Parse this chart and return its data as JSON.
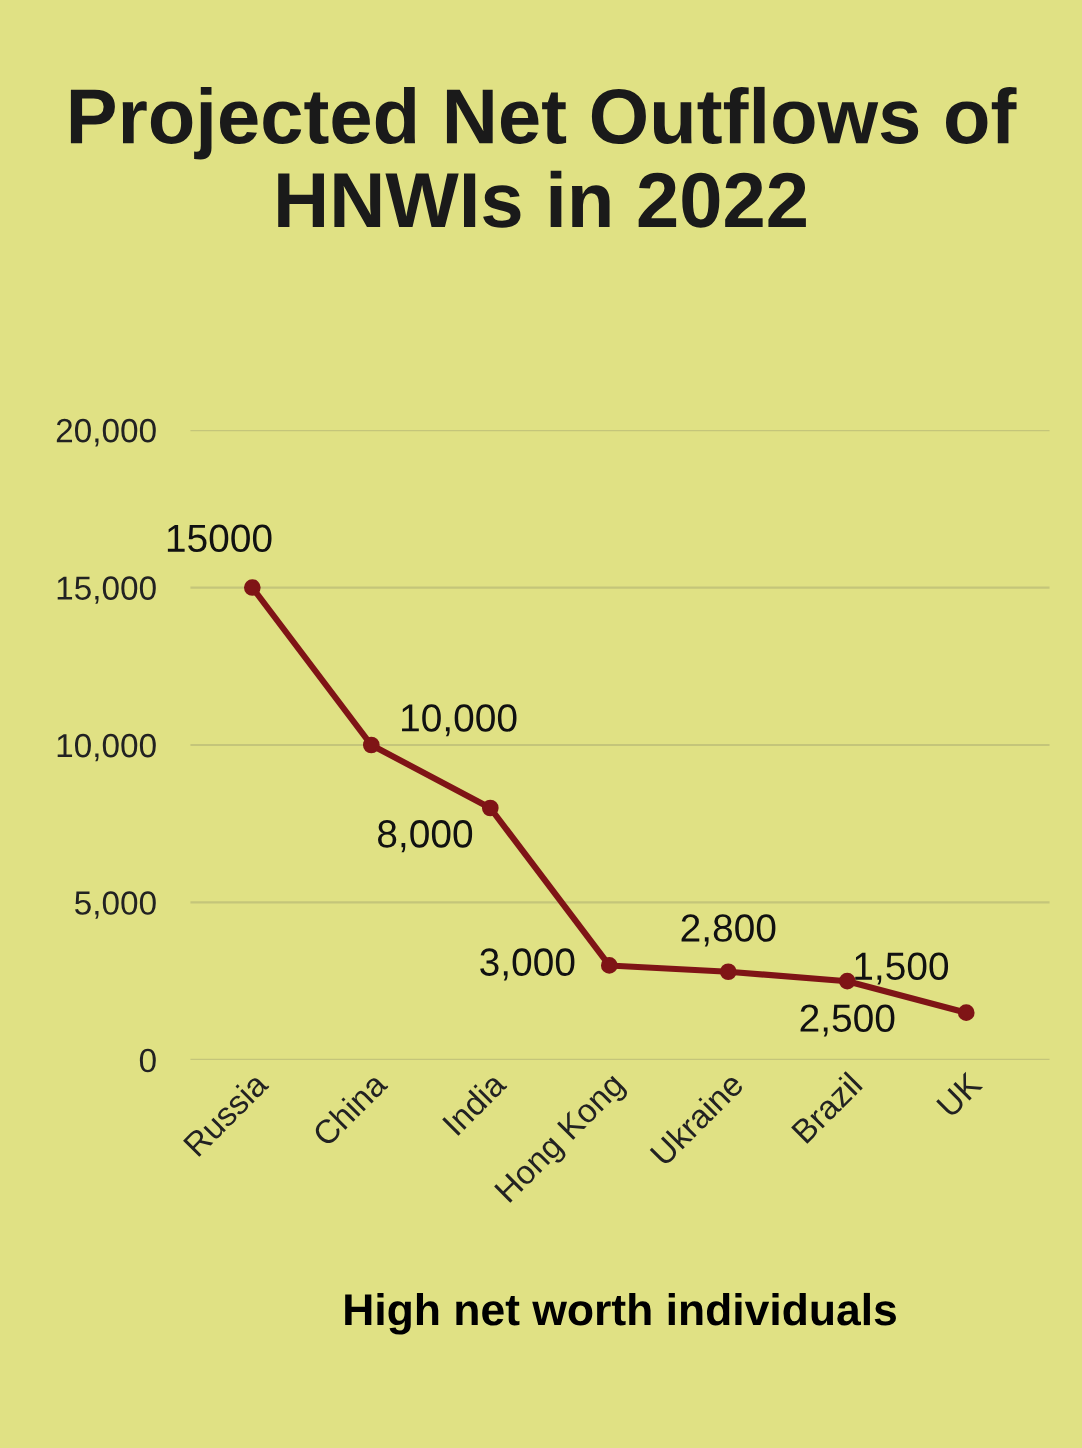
{
  "chart_data": {
    "type": "line",
    "title": "Projected Net Outflows of\nHNWIs in 2022",
    "xlabel": "High net worth individuals",
    "categories": [
      "Russia",
      "China",
      "India",
      "Hong Kong",
      "Ukraine",
      "Brazil",
      "UK"
    ],
    "values": [
      15000,
      10000,
      8000,
      3000,
      2800,
      2500,
      1500
    ],
    "value_labels": [
      "15000",
      "10,000",
      "8,000",
      "3,000",
      "2,800",
      "2,500",
      "1,500"
    ],
    "color": "#7f1416",
    "marker": "circle",
    "line_style": "solid",
    "grid": "y",
    "ylim": [
      0,
      20000
    ],
    "yticks": [
      {
        "value": 0,
        "label": "0"
      },
      {
        "value": 5000,
        "label": "5,000"
      },
      {
        "value": 10000,
        "label": "10,000"
      },
      {
        "value": 15000,
        "label": "15,000"
      },
      {
        "value": 20000,
        "label": "20,000"
      }
    ]
  }
}
